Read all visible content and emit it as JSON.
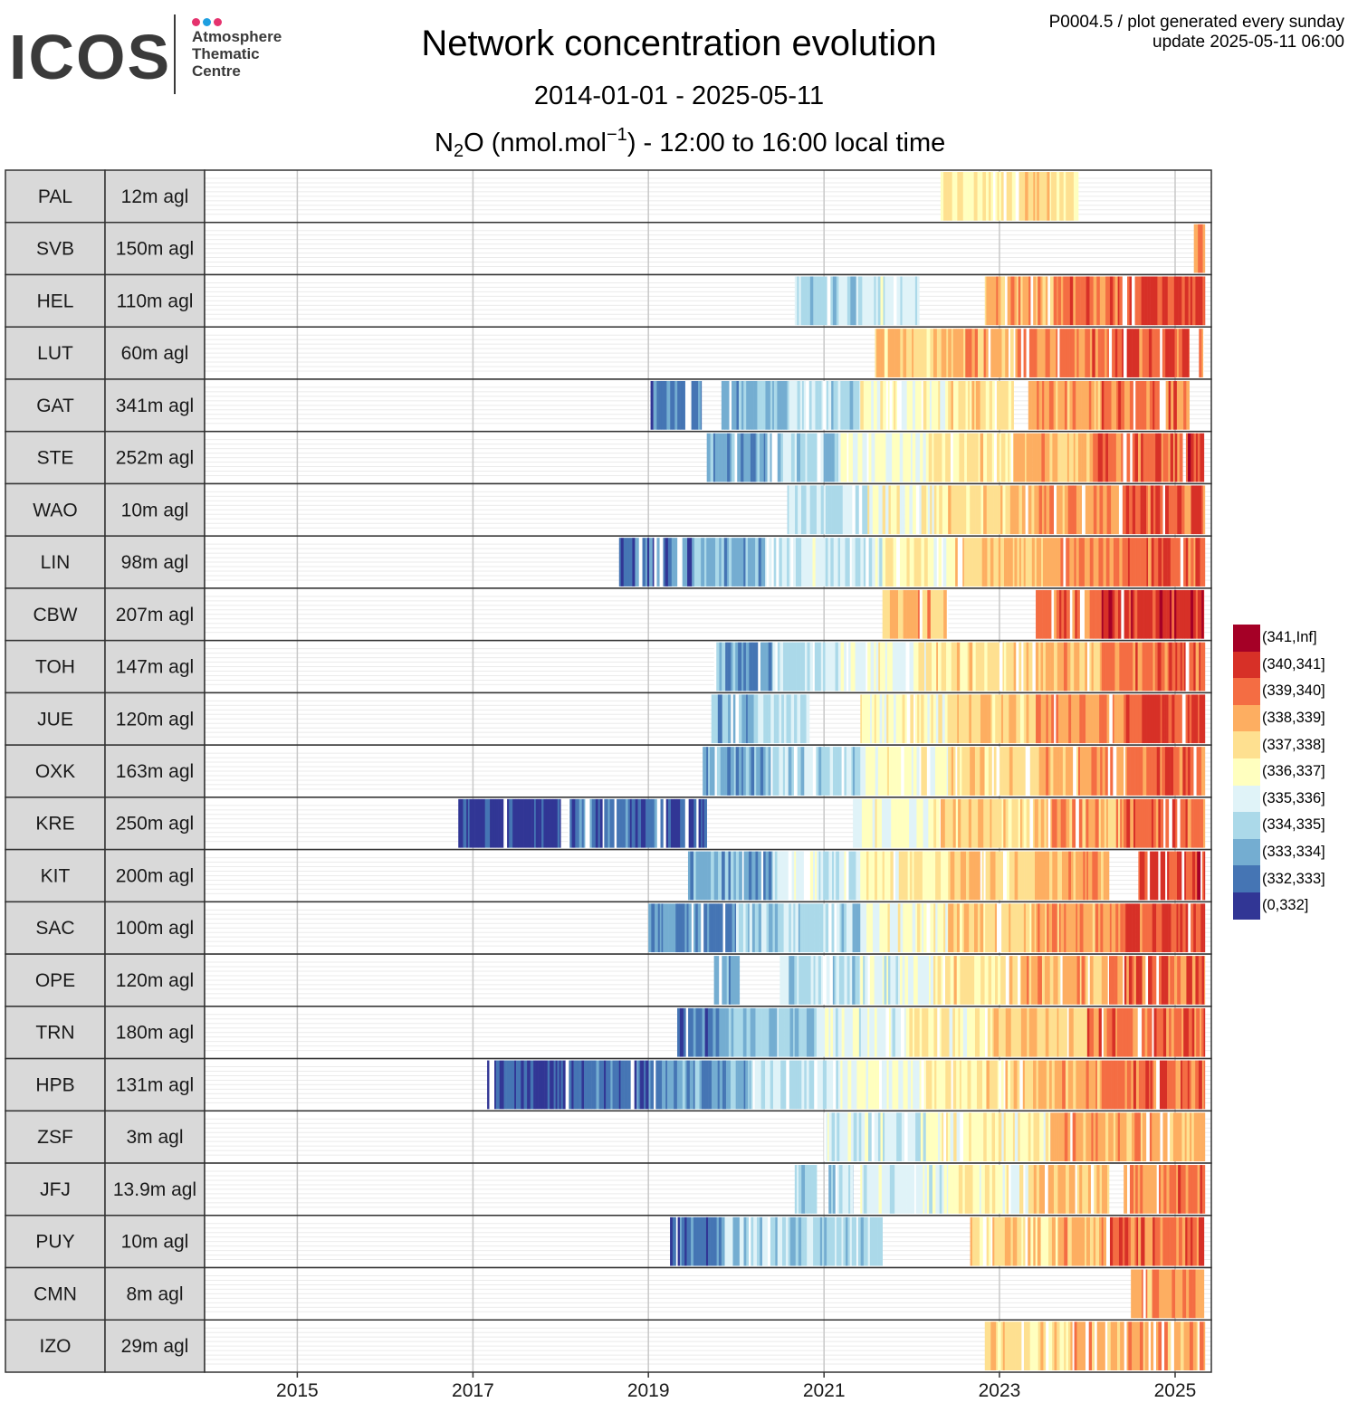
{
  "header": {
    "logo": {
      "word": "ICOS",
      "sub_lines": [
        "Atmosphere",
        "Thematic",
        "Centre"
      ]
    },
    "title": "Network concentration evolution",
    "date_range": "2014-01-01 - 2025-05-11",
    "species_main": "N",
    "species_sub": "2",
    "species_mid": "O (nmol.mol",
    "species_sup": "−1",
    "species_tail": ") - 12:00 to 16:00 local time",
    "meta_line1": "P0004.5 / plot generated every sunday",
    "meta_line2": "update  2025-05-11 06:00"
  },
  "colors": {
    "logo_dots": [
      "#e5336e",
      "#1e9fe0",
      "#e5336e"
    ]
  },
  "chart_data": {
    "type": "heatmap",
    "title": "Network concentration evolution",
    "x_axis": {
      "type": "date",
      "range": [
        "2014-01-01",
        "2025-05-11"
      ],
      "ticks": [
        "2015",
        "2017",
        "2019",
        "2021",
        "2023",
        "2025"
      ]
    },
    "legend": {
      "placement": "right",
      "bins": [
        {
          "label": "(341,Inf]",
          "color": "#a50026"
        },
        {
          "label": "(340,341]",
          "color": "#d73027"
        },
        {
          "label": "(339,340]",
          "color": "#f46d43"
        },
        {
          "label": "(338,339]",
          "color": "#fdae61"
        },
        {
          "label": "(337,338]",
          "color": "#fee090"
        },
        {
          "label": "(336,337]",
          "color": "#ffffbf"
        },
        {
          "label": "(335,336]",
          "color": "#e0f3f8"
        },
        {
          "label": "(334,335]",
          "color": "#abd9e9"
        },
        {
          "label": "(333,334]",
          "color": "#74add1"
        },
        {
          "label": "(332,333]",
          "color": "#4575b4"
        },
        {
          "label": "(0,332]",
          "color": "#313695"
        }
      ]
    },
    "stations": [
      {
        "code": "PAL",
        "height": "12m agl",
        "segments": [
          [
            "2022-05-01",
            "2022-12-15",
            337.1
          ],
          [
            "2022-12-15",
            "2023-11-25",
            337.4
          ]
        ]
      },
      {
        "code": "SVB",
        "height": "150m agl",
        "segments": [
          [
            "2025-03-20",
            "2025-05-05",
            339.6
          ]
        ]
      },
      {
        "code": "HEL",
        "height": "110m agl",
        "segments": [
          [
            "2020-09-01",
            "2021-06-01",
            334.6
          ],
          [
            "2021-06-01",
            "2022-02-01",
            335.3
          ],
          [
            "2022-11-01",
            "2023-09-01",
            338.6
          ],
          [
            "2023-09-01",
            "2024-06-01",
            339.4
          ],
          [
            "2024-06-01",
            "2025-05-05",
            340.2
          ]
        ]
      },
      {
        "code": "LUT",
        "height": "60m agl",
        "segments": [
          [
            "2021-08-01",
            "2022-06-01",
            337.8
          ],
          [
            "2022-06-01",
            "2023-04-01",
            338.6
          ],
          [
            "2023-04-01",
            "2024-04-01",
            339.2
          ],
          [
            "2024-04-01",
            "2025-03-01",
            339.8
          ],
          [
            "2025-04-10",
            "2025-05-01",
            339.5
          ]
        ]
      },
      {
        "code": "GAT",
        "height": "341m agl",
        "segments": [
          [
            "2019-01-10",
            "2019-08-10",
            332.6
          ],
          [
            "2019-11-01",
            "2020-08-01",
            333.6
          ],
          [
            "2020-08-01",
            "2021-06-01",
            334.8
          ],
          [
            "2021-06-01",
            "2022-06-01",
            336.4
          ],
          [
            "2022-06-01",
            "2023-03-01",
            337.3
          ],
          [
            "2023-05-01",
            "2024-03-01",
            338.5
          ],
          [
            "2024-03-01",
            "2025-03-01",
            339.4
          ]
        ]
      },
      {
        "code": "STE",
        "height": "252m agl",
        "segments": [
          [
            "2019-09-01",
            "2020-05-01",
            333.2
          ],
          [
            "2020-05-01",
            "2021-03-01",
            334.6
          ],
          [
            "2021-03-01",
            "2022-03-01",
            336.0
          ],
          [
            "2022-03-01",
            "2023-03-01",
            337.2
          ],
          [
            "2023-03-01",
            "2024-02-01",
            338.4
          ],
          [
            "2024-02-01",
            "2025-02-01",
            339.5
          ],
          [
            "2025-02-15",
            "2025-05-01",
            340.2
          ]
        ]
      },
      {
        "code": "WAO",
        "height": "10m agl",
        "segments": [
          [
            "2020-08-01",
            "2021-07-01",
            334.9
          ],
          [
            "2021-07-01",
            "2022-06-01",
            336.4
          ],
          [
            "2022-06-01",
            "2023-06-01",
            337.6
          ],
          [
            "2023-06-01",
            "2024-06-01",
            338.7
          ],
          [
            "2024-06-01",
            "2025-05-05",
            339.7
          ]
        ]
      },
      {
        "code": "LIN",
        "height": "98m agl",
        "segments": [
          [
            "2018-09-01",
            "2019-07-01",
            332.4
          ],
          [
            "2019-07-01",
            "2020-05-01",
            333.6
          ],
          [
            "2020-05-01",
            "2021-09-01",
            335.2
          ],
          [
            "2021-09-01",
            "2022-07-01",
            336.8
          ],
          [
            "2022-07-01",
            "2023-07-01",
            338.0
          ],
          [
            "2023-07-01",
            "2024-06-01",
            338.9
          ],
          [
            "2024-06-01",
            "2025-05-05",
            339.8
          ]
        ]
      },
      {
        "code": "CBW",
        "height": "207m agl",
        "segments": [
          [
            "2021-09-01",
            "2022-06-01",
            338.2
          ],
          [
            "2023-06-01",
            "2024-03-01",
            339.4
          ],
          [
            "2024-03-01",
            "2025-05-01",
            340.4
          ]
        ]
      },
      {
        "code": "TOH",
        "height": "147m agl",
        "segments": [
          [
            "2019-10-01",
            "2020-06-01",
            333.6
          ],
          [
            "2020-06-01",
            "2021-03-01",
            334.9
          ],
          [
            "2021-03-01",
            "2022-03-01",
            336.2
          ],
          [
            "2022-03-01",
            "2023-03-01",
            337.3
          ],
          [
            "2023-03-01",
            "2024-03-01",
            338.3
          ],
          [
            "2024-03-01",
            "2025-05-05",
            339.5
          ]
        ]
      },
      {
        "code": "JUE",
        "height": "120m agl",
        "segments": [
          [
            "2019-09-20",
            "2020-04-01",
            333.7
          ],
          [
            "2020-04-01",
            "2020-11-01",
            335.0
          ],
          [
            "2021-06-01",
            "2022-06-01",
            336.6
          ],
          [
            "2022-06-01",
            "2023-06-01",
            337.8
          ],
          [
            "2023-06-01",
            "2024-06-01",
            338.9
          ],
          [
            "2024-06-01",
            "2025-05-05",
            340.0
          ]
        ]
      },
      {
        "code": "OXK",
        "height": "163m agl",
        "segments": [
          [
            "2019-08-15",
            "2020-06-01",
            333.4
          ],
          [
            "2020-06-01",
            "2021-06-01",
            334.8
          ],
          [
            "2021-06-01",
            "2022-06-01",
            336.4
          ],
          [
            "2022-06-01",
            "2023-06-01",
            337.6
          ],
          [
            "2023-06-01",
            "2024-06-01",
            338.6
          ],
          [
            "2024-06-01",
            "2025-05-05",
            339.6
          ]
        ]
      },
      {
        "code": "KRE",
        "height": "250m agl",
        "segments": [
          [
            "2016-11-01",
            "2018-01-01",
            331.6
          ],
          [
            "2018-02-01",
            "2019-09-01",
            332.3
          ],
          [
            "2021-05-01",
            "2022-05-01",
            336.2
          ],
          [
            "2022-05-01",
            "2023-06-01",
            337.5
          ],
          [
            "2023-06-01",
            "2024-06-01",
            338.6
          ],
          [
            "2024-06-01",
            "2025-05-05",
            339.8
          ]
        ]
      },
      {
        "code": "KIT",
        "height": "200m agl",
        "segments": [
          [
            "2019-06-15",
            "2020-06-01",
            333.5
          ],
          [
            "2020-06-01",
            "2021-06-01",
            335.3
          ],
          [
            "2021-06-01",
            "2022-06-01",
            336.8
          ],
          [
            "2022-06-01",
            "2023-06-01",
            337.8
          ],
          [
            "2023-06-01",
            "2024-04-01",
            338.7
          ],
          [
            "2024-08-01",
            "2025-05-05",
            340.2
          ]
        ]
      },
      {
        "code": "SAC",
        "height": "100m agl",
        "segments": [
          [
            "2019-01-01",
            "2020-01-01",
            333.0
          ],
          [
            "2020-01-01",
            "2021-06-01",
            334.6
          ],
          [
            "2021-06-01",
            "2022-06-01",
            336.3
          ],
          [
            "2022-06-01",
            "2023-06-01",
            337.6
          ],
          [
            "2023-06-01",
            "2024-06-01",
            338.7
          ],
          [
            "2024-06-01",
            "2025-05-05",
            339.8
          ]
        ]
      },
      {
        "code": "OPE",
        "height": "120m agl",
        "segments": [
          [
            "2019-10-01",
            "2020-01-15",
            333.5
          ],
          [
            "2020-07-01",
            "2021-06-01",
            334.6
          ],
          [
            "2021-06-01",
            "2022-04-01",
            335.6
          ],
          [
            "2022-04-01",
            "2023-04-01",
            337.2
          ],
          [
            "2023-04-01",
            "2024-04-01",
            338.4
          ],
          [
            "2024-04-01",
            "2025-05-05",
            339.6
          ]
        ]
      },
      {
        "code": "TRN",
        "height": "180m agl",
        "segments": [
          [
            "2019-05-01",
            "2019-12-01",
            332.8
          ],
          [
            "2019-12-01",
            "2020-12-01",
            334.2
          ],
          [
            "2020-12-01",
            "2021-12-01",
            335.6
          ],
          [
            "2021-12-01",
            "2022-12-01",
            336.8
          ],
          [
            "2022-12-01",
            "2024-01-01",
            338.0
          ],
          [
            "2024-01-01",
            "2025-05-05",
            339.5
          ]
        ]
      },
      {
        "code": "HPB",
        "height": "131m agl",
        "segments": [
          [
            "2017-03-01",
            "2018-03-01",
            331.7
          ],
          [
            "2018-03-01",
            "2019-03-01",
            332.5
          ],
          [
            "2019-03-01",
            "2020-03-01",
            333.4
          ],
          [
            "2020-03-01",
            "2021-03-01",
            334.9
          ],
          [
            "2021-03-01",
            "2022-03-01",
            336.2
          ],
          [
            "2022-03-01",
            "2023-03-01",
            337.3
          ],
          [
            "2023-03-01",
            "2024-03-01",
            338.3
          ],
          [
            "2024-03-01",
            "2025-05-05",
            339.4
          ]
        ]
      },
      {
        "code": "ZSF",
        "height": "3m agl",
        "segments": [
          [
            "2021-01-01",
            "2022-03-01",
            335.3
          ],
          [
            "2022-03-01",
            "2023-08-01",
            336.7
          ],
          [
            "2023-08-01",
            "2025-05-05",
            338.4
          ]
        ]
      },
      {
        "code": "JFJ",
        "height": "13.9m agl",
        "segments": [
          [
            "2020-09-01",
            "2020-12-01",
            334.3
          ],
          [
            "2021-01-20",
            "2021-05-01",
            334.6
          ],
          [
            "2021-06-01",
            "2022-06-01",
            335.7
          ],
          [
            "2022-06-01",
            "2023-05-01",
            336.6
          ],
          [
            "2023-05-01",
            "2024-04-01",
            338.1
          ],
          [
            "2024-06-01",
            "2025-05-05",
            339.2
          ]
        ]
      },
      {
        "code": "PUY",
        "height": "10m agl",
        "segments": [
          [
            "2019-04-01",
            "2019-11-01",
            332.8
          ],
          [
            "2019-11-01",
            "2021-09-01",
            334.5
          ],
          [
            "2022-09-01",
            "2023-09-01",
            337.6
          ],
          [
            "2023-09-01",
            "2024-03-01",
            338.3
          ],
          [
            "2024-03-01",
            "2025-05-01",
            339.4
          ]
        ]
      },
      {
        "code": "CMN",
        "height": "8m agl",
        "segments": [
          [
            "2024-07-01",
            "2025-05-01",
            338.8
          ]
        ]
      },
      {
        "code": "IZO",
        "height": "29m agl",
        "segments": [
          [
            "2022-11-01",
            "2023-11-01",
            337.5
          ],
          [
            "2023-11-01",
            "2025-05-05",
            338.5
          ]
        ]
      }
    ]
  }
}
